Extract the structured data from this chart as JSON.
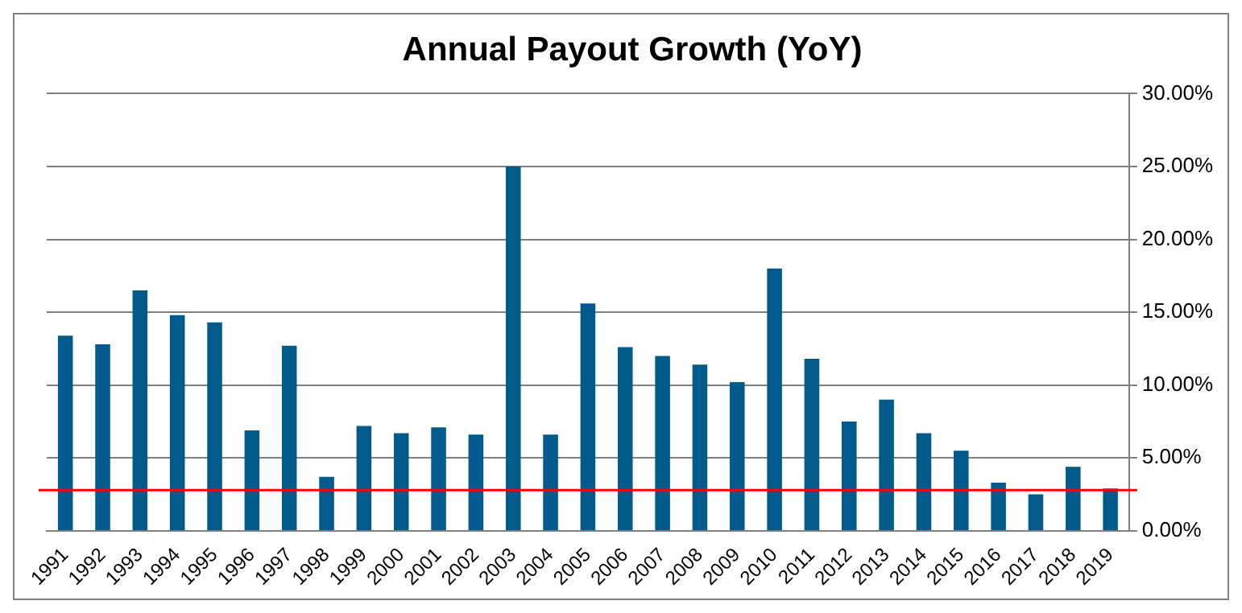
{
  "chart_data": {
    "type": "bar",
    "title": "Annual Payout Growth (YoY)",
    "categories": [
      "1991",
      "1992",
      "1993",
      "1994",
      "1995",
      "1996",
      "1997",
      "1998",
      "1999",
      "2000",
      "2001",
      "2002",
      "2003",
      "2004",
      "2005",
      "2006",
      "2007",
      "2008",
      "2009",
      "2010",
      "2011",
      "2012",
      "2013",
      "2014",
      "2015",
      "2016",
      "2017",
      "2018",
      "2019"
    ],
    "values": [
      13.4,
      12.8,
      16.5,
      14.8,
      14.3,
      6.9,
      12.7,
      3.7,
      7.2,
      6.7,
      7.1,
      6.6,
      25.0,
      6.6,
      15.6,
      12.6,
      12.0,
      11.4,
      10.2,
      18.0,
      11.8,
      7.5,
      9.0,
      6.7,
      5.5,
      3.3,
      2.5,
      4.4,
      2.9
    ],
    "color": "#005a8c",
    "ylim": [
      0,
      30
    ],
    "yticks": [
      {
        "value": 0,
        "label": "0.00%"
      },
      {
        "value": 5,
        "label": "5.00%"
      },
      {
        "value": 10,
        "label": "10.00%"
      },
      {
        "value": 15,
        "label": "15.00%"
      },
      {
        "value": 20,
        "label": "20.00%"
      },
      {
        "value": 25,
        "label": "25.00%"
      },
      {
        "value": 30,
        "label": "30.00%"
      }
    ],
    "grid": "y",
    "ref_lines": [
      {
        "axis": "y",
        "value": 2.8,
        "color": "#ff0000"
      }
    ]
  }
}
